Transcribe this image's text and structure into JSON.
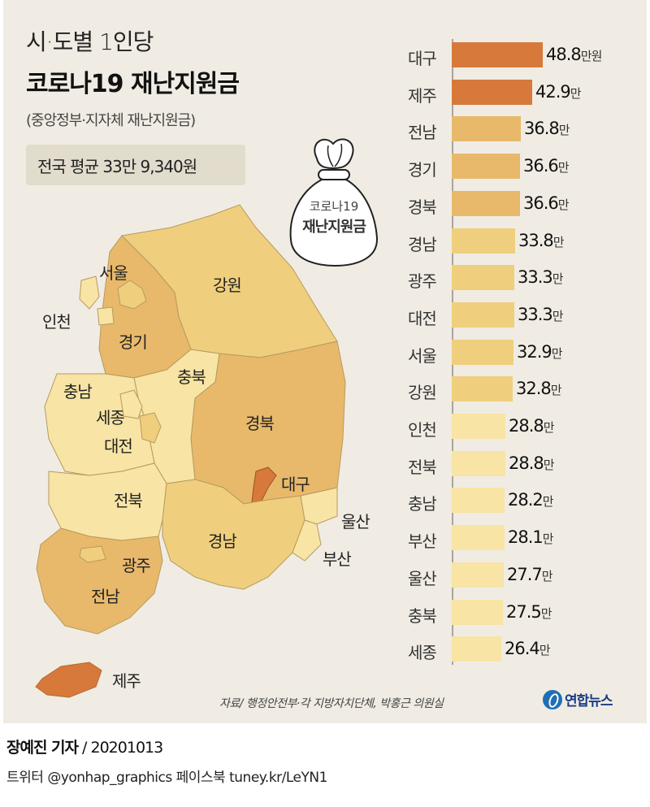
{
  "header": {
    "title_line1": "시·도별 1인당",
    "title_line2": "코로나19 재난지원금",
    "subtitle": "(중앙정부·지자체 재난지원금)",
    "national_average": "전국 평균 33만 9,340원"
  },
  "bag_illustration": {
    "line1": "코로나19",
    "line2": "재난지원금"
  },
  "map": {
    "labels": {
      "seoul": "서울",
      "incheon": "인천",
      "gyeonggi": "경기",
      "gangwon": "강원",
      "chungbuk": "충북",
      "chungnam": "충남",
      "sejong": "세종",
      "daejeon": "대전",
      "gyeongbuk": "경북",
      "daegu": "대구",
      "jeonbuk": "전북",
      "gyeongnam": "경남",
      "ulsan": "울산",
      "busan": "부산",
      "gwangju": "광주",
      "jeonnam": "전남",
      "jeju": "제주"
    }
  },
  "colors": {
    "highest": "#d6793a",
    "high": "#e8b96b",
    "mid": "#efcf7d",
    "low": "#f8e4a4",
    "panel_bg": "#f0ece3",
    "average_box": "#e2dccd",
    "logo_blue": "#1b3c86"
  },
  "chart_data": {
    "type": "bar",
    "orientation": "horizontal",
    "title": "시·도별 1인당 코로나19 재난지원금",
    "subtitle": "(중앙정부·지자체 재난지원금)",
    "unit": "만원",
    "annotation": "전국 평균 33만 9,340원",
    "categories": [
      "대구",
      "제주",
      "전남",
      "경기",
      "경북",
      "경남",
      "광주",
      "대전",
      "서울",
      "강원",
      "인천",
      "전북",
      "충남",
      "부산",
      "울산",
      "충북",
      "세종"
    ],
    "values": [
      48.8,
      42.9,
      36.8,
      36.6,
      36.6,
      33.8,
      33.3,
      33.3,
      32.9,
      32.8,
      28.8,
      28.8,
      28.2,
      28.1,
      27.7,
      27.5,
      26.4
    ],
    "value_labels": [
      "48.8만원",
      "42.9만",
      "36.8만",
      "36.6만",
      "36.6만",
      "33.8만",
      "33.3만",
      "33.3만",
      "32.9만",
      "32.8만",
      "28.8만",
      "28.8만",
      "28.2만",
      "28.1만",
      "27.7만",
      "27.5만",
      "26.4만"
    ],
    "xlabel": "",
    "ylabel": "",
    "grid": false,
    "legend": null
  },
  "bars": [
    {
      "label": "대구",
      "num": "48.8",
      "unit": "만원",
      "value": 48.8,
      "tier": "highest"
    },
    {
      "label": "제주",
      "num": "42.9",
      "unit": "만",
      "value": 42.9,
      "tier": "highest"
    },
    {
      "label": "전남",
      "num": "36.8",
      "unit": "만",
      "value": 36.8,
      "tier": "high"
    },
    {
      "label": "경기",
      "num": "36.6",
      "unit": "만",
      "value": 36.6,
      "tier": "high"
    },
    {
      "label": "경북",
      "num": "36.6",
      "unit": "만",
      "value": 36.6,
      "tier": "high"
    },
    {
      "label": "경남",
      "num": "33.8",
      "unit": "만",
      "value": 33.8,
      "tier": "mid"
    },
    {
      "label": "광주",
      "num": "33.3",
      "unit": "만",
      "value": 33.3,
      "tier": "mid"
    },
    {
      "label": "대전",
      "num": "33.3",
      "unit": "만",
      "value": 33.3,
      "tier": "mid"
    },
    {
      "label": "서울",
      "num": "32.9",
      "unit": "만",
      "value": 32.9,
      "tier": "mid"
    },
    {
      "label": "강원",
      "num": "32.8",
      "unit": "만",
      "value": 32.8,
      "tier": "mid"
    },
    {
      "label": "인천",
      "num": "28.8",
      "unit": "만",
      "value": 28.8,
      "tier": "low"
    },
    {
      "label": "전북",
      "num": "28.8",
      "unit": "만",
      "value": 28.8,
      "tier": "low"
    },
    {
      "label": "충남",
      "num": "28.2",
      "unit": "만",
      "value": 28.2,
      "tier": "low"
    },
    {
      "label": "부산",
      "num": "28.1",
      "unit": "만",
      "value": 28.1,
      "tier": "low"
    },
    {
      "label": "울산",
      "num": "27.7",
      "unit": "만",
      "value": 27.7,
      "tier": "low"
    },
    {
      "label": "충북",
      "num": "27.5",
      "unit": "만",
      "value": 27.5,
      "tier": "low"
    },
    {
      "label": "세종",
      "num": "26.4",
      "unit": "만",
      "value": 26.4,
      "tier": "low"
    }
  ],
  "footer": {
    "source": "자료/ 행정안전부·각 지방자치단체, 박홍근 의원실",
    "logo_text": "연합뉴스",
    "reporter": "장예진 기자",
    "date": " / 20201013",
    "social": "트위터 @yonhap_graphics  페이스북 tuney.kr/LeYN1"
  }
}
